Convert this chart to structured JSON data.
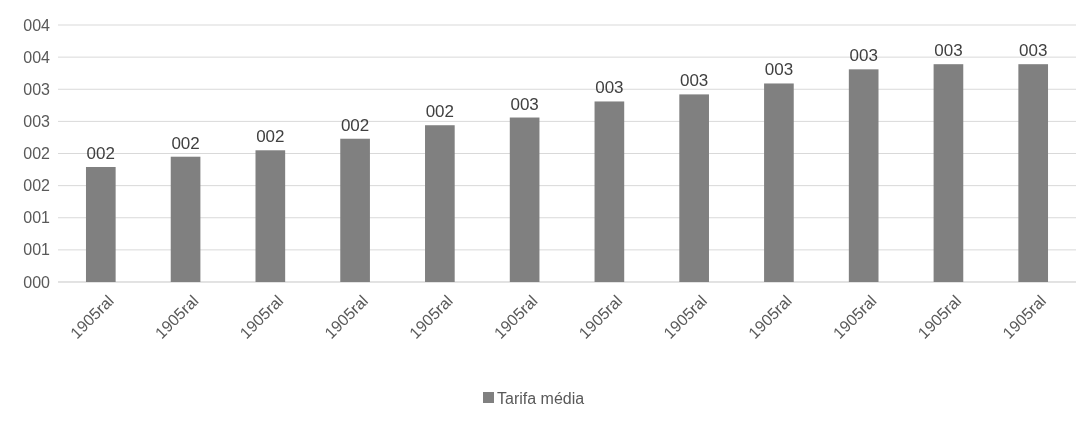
{
  "chart_data": {
    "type": "bar",
    "categories": [
      "1905ral",
      "1905ral",
      "1905ral",
      "1905ral",
      "1905ral",
      "1905ral",
      "1905ral",
      "1905ral",
      "1905ral",
      "1905ral",
      "1905ral",
      "1905ral"
    ],
    "series": [
      {
        "name": "Tarifa média",
        "color": "#808080",
        "values": [
          1.79,
          1.95,
          2.05,
          2.23,
          2.44,
          2.56,
          2.81,
          2.92,
          3.09,
          3.31,
          3.39,
          3.39
        ],
        "value_labels": [
          "002",
          "002",
          "002",
          "002",
          "002",
          "003",
          "003",
          "003",
          "003",
          "003",
          "003",
          "003"
        ]
      }
    ],
    "ylim": [
      0,
      4
    ],
    "yticks": [
      {
        "value": 0,
        "label": "000"
      },
      {
        "value": 0.5,
        "label": "001"
      },
      {
        "value": 1,
        "label": "001"
      },
      {
        "value": 1.5,
        "label": "002"
      },
      {
        "value": 2,
        "label": "002"
      },
      {
        "value": 2.5,
        "label": "003"
      },
      {
        "value": 3,
        "label": "003"
      },
      {
        "value": 3.5,
        "label": "004"
      },
      {
        "value": 4,
        "label": "004"
      }
    ],
    "grid": "y",
    "legend": "bottom"
  }
}
